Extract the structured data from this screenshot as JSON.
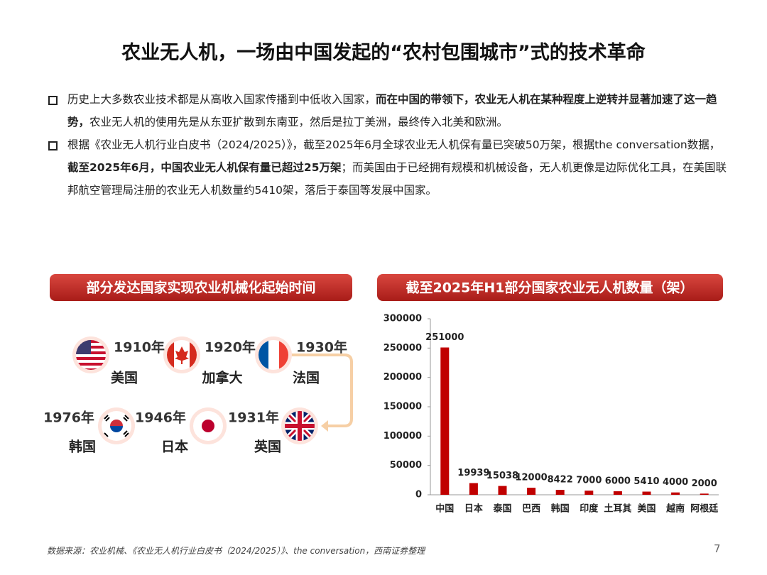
{
  "header": {
    "title": "农业无人机，一场由中国发起的“农村包围城市”式的技术革命"
  },
  "bullets": [
    {
      "segments": [
        {
          "text": "历史上大多数农业技术都是从高收入国家传播到中低收入国家，",
          "bold": false
        },
        {
          "text": "而在中国的带领下，农业无人机在某种程度上逆转并显著加速了这一趋势，",
          "bold": true
        },
        {
          "text": "农业无人机的使用先是从东亚扩散到东南亚，然后是拉丁美洲，最终传入北美和欧洲。",
          "bold": false
        }
      ]
    },
    {
      "segments": [
        {
          "text": "根据《农业无人机行业白皮书（2024/2025）》，截至2025年6月全球农业无人机保有量已突破50万架，根据the conversation数据，",
          "bold": false
        },
        {
          "text": "截至2025年6月，中国农业无人机保有量已超过25万架",
          "bold": true
        },
        {
          "text": "；而美国由于已经拥有规模和机械设备，无人机更像是边际优化工具，在美国联邦航空管理局注册的农业无人机数量约5410架，落后于泰国等发展中国家。",
          "bold": false
        }
      ]
    }
  ],
  "timeline": {
    "title": "部分发达国家实现农业机械化起始时间",
    "items": [
      {
        "year": "1910年",
        "country": "美国"
      },
      {
        "year": "1920年",
        "country": "加拿大"
      },
      {
        "year": "1930年",
        "country": "法国"
      },
      {
        "year": "1931年",
        "country": "英国"
      },
      {
        "year": "1946年",
        "country": "日本"
      },
      {
        "year": "1976年",
        "country": "韩国"
      }
    ]
  },
  "chart_data": {
    "type": "bar",
    "title": "截至2025年H1部分国家农业无人机数量（架）",
    "categories": [
      "中国",
      "日本",
      "泰国",
      "巴西",
      "韩国",
      "印度",
      "土耳其",
      "美国",
      "越南",
      "阿根廷"
    ],
    "values": [
      251000,
      19939,
      15038,
      12000,
      8422,
      7000,
      6000,
      5410,
      4000,
      2000
    ],
    "color": "#c00000",
    "ylim": [
      0,
      300000
    ],
    "yticks": [
      0,
      50000,
      100000,
      150000,
      200000,
      250000,
      300000
    ]
  },
  "footer": {
    "source": "数据来源：农业机械、《农业无人机行业白皮书（2024/2025）》、the conversation，西南证券整理",
    "page": "7"
  }
}
